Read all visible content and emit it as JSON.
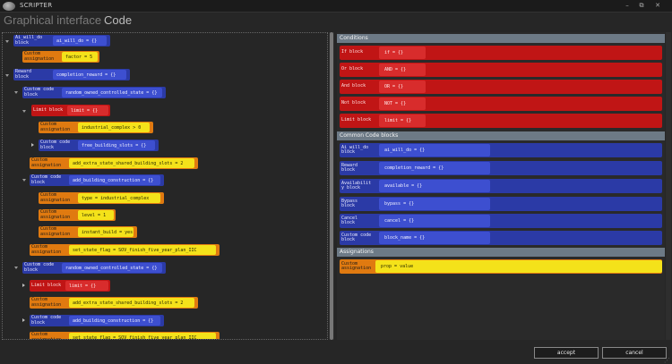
{
  "window": {
    "title": "SCRIPTER",
    "controls": [
      "–",
      "⧉",
      "✕"
    ]
  },
  "tabs": {
    "graphical": "Graphical interface",
    "code": "Code"
  },
  "tree": [
    {
      "color": "blue",
      "label": "Ai_will_do\nblock",
      "value": "ai_will_do = {}"
    },
    {
      "color": "orange",
      "label": "Custom\nassignation",
      "value": "factor = 5"
    },
    {
      "color": "blue",
      "label": "Reward\nblock",
      "value": "completion_reward = {}"
    },
    {
      "color": "blue",
      "label": "Custom code\nblock",
      "value": "random_owned_controlled_state = {}"
    },
    {
      "color": "red",
      "label": "Limit block",
      "value": "limit = {}"
    },
    {
      "color": "orange",
      "label": "Custom\nassignation",
      "value": "industrial_complex > 0"
    },
    {
      "color": "blue",
      "label": "Custom code\nblock",
      "value": "free_building_slots = {}"
    },
    {
      "color": "orange",
      "label": "Custom\nassignation",
      "value": "add_extra_state_shared_building_slots = 2"
    },
    {
      "color": "blue",
      "label": "Custom code\nblock",
      "value": "add_building_construction = {}"
    },
    {
      "color": "orange",
      "label": "Custom\nassignation",
      "value": "type = industrial_complex"
    },
    {
      "color": "orange",
      "label": "Custom\nassignation",
      "value": "level = 1"
    },
    {
      "color": "orange",
      "label": "Custom\nassignation",
      "value": "instant_build = yes"
    },
    {
      "color": "orange",
      "label": "Custom\nassignation",
      "value": "set_state_flag = SOV_finish_five_year_plan_IIC"
    },
    {
      "color": "blue",
      "label": "Custom code\nblock",
      "value": "random_owned_controlled_state = {}"
    },
    {
      "color": "red",
      "label": "Limit block",
      "value": "limit = {}"
    },
    {
      "color": "orange",
      "label": "Custom\nassignation",
      "value": "add_extra_state_shared_building_slots = 2"
    },
    {
      "color": "blue",
      "label": "Custom code\nblock",
      "value": "add_building_construction = {}"
    },
    {
      "color": "orange",
      "label": "Custom\nassignation",
      "value": "set_state_flag = SOV_finish_five_year_plan_IIC"
    }
  ],
  "palette": {
    "conditions": {
      "header": "Conditions",
      "items": [
        {
          "label": "If block",
          "value": "if = {}"
        },
        {
          "label": "Or block",
          "value": "AND = {}"
        },
        {
          "label": "And block",
          "value": "OR = {}"
        },
        {
          "label": "Not block",
          "value": "NOT = {}"
        },
        {
          "label": "Limit block",
          "value": "limit = {}"
        }
      ]
    },
    "common": {
      "header": "Common Code blocks",
      "items": [
        {
          "label": "Ai_will_do\nblock",
          "value": "ai_will_do = {}"
        },
        {
          "label": "Reward\nblock",
          "value": "completion_reward = {}"
        },
        {
          "label": "Availabilit\ny block",
          "value": "available = {}"
        },
        {
          "label": "Bypass\nblock",
          "value": "bypass = {}"
        },
        {
          "label": "Cancel\nblock",
          "value": "cancel = {}"
        },
        {
          "label": "Custom code\nblock",
          "value": "block_name = {}"
        }
      ]
    },
    "assignations": {
      "header": "Assignations",
      "items": [
        {
          "label": "Custom\nassignation",
          "value": "prop = value"
        }
      ]
    }
  },
  "buttons": {
    "accept": "accept",
    "cancel": "cancel"
  },
  "colors": {
    "blue_block": "#2b3aa6",
    "orange_block": "#e07a10",
    "red_block": "#c01515",
    "section_header": "#6d7a86"
  }
}
